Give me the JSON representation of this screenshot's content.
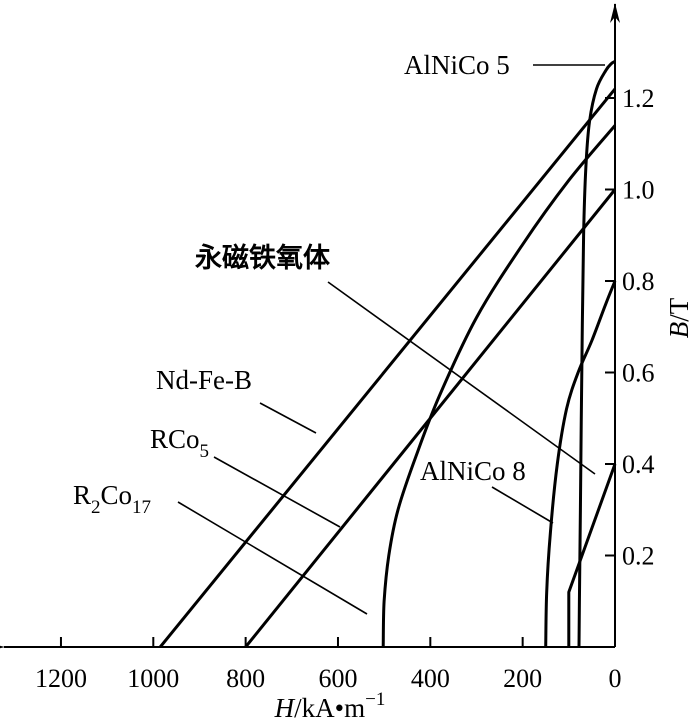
{
  "chart_data": {
    "type": "line",
    "title": "",
    "xlabel": "H/kA•m⁻¹",
    "ylabel": "B/T",
    "x_axis": {
      "reversed": true,
      "lim": [
        0,
        1300
      ],
      "ticks": [
        1200,
        1000,
        800,
        600,
        400,
        200,
        0
      ],
      "tick_labels": [
        "1200",
        "1000",
        "800",
        "600",
        "400",
        "200",
        "0"
      ],
      "label_title": "H",
      "label_unit": "/kA•m",
      "label_exp": "−1"
    },
    "y_axis": {
      "lim": [
        0,
        1.32
      ],
      "ticks": [
        0.2,
        0.4,
        0.6,
        0.8,
        1.0,
        1.2
      ],
      "tick_labels": [
        "0.2",
        "0.4",
        "0.6",
        "0.8",
        "1.0",
        "1.2"
      ],
      "label_title": "B",
      "label_unit": "/T"
    },
    "grid": false,
    "legend": "none",
    "series": [
      {
        "name": "AlNiCo 5",
        "points": [
          [
            0,
            1.28
          ],
          [
            8,
            1.275
          ],
          [
            20,
            1.26
          ],
          [
            40,
            1.22
          ],
          [
            55,
            1.15
          ],
          [
            63,
            1.05
          ],
          [
            68,
            0.9
          ],
          [
            72,
            0.6
          ],
          [
            75,
            0.3
          ],
          [
            77,
            0.1
          ],
          [
            78,
            0
          ]
        ]
      },
      {
        "name": "Nd-Fe-B",
        "points": [
          [
            0,
            1.22
          ],
          [
            985,
            0
          ]
        ]
      },
      {
        "name": "RCo5",
        "points": [
          [
            0,
            1.0
          ],
          [
            800,
            0
          ]
        ]
      },
      {
        "name": "R2Co17",
        "points": [
          [
            0,
            1.14
          ],
          [
            100,
            1.02
          ],
          [
            200,
            0.88
          ],
          [
            300,
            0.72
          ],
          [
            380,
            0.55
          ],
          [
            430,
            0.42
          ],
          [
            470,
            0.3
          ],
          [
            490,
            0.2
          ],
          [
            500,
            0.1
          ],
          [
            502,
            0
          ]
        ]
      },
      {
        "name": "AlNiCo 8",
        "points": [
          [
            0,
            0.8
          ],
          [
            20,
            0.75
          ],
          [
            50,
            0.67
          ],
          [
            80,
            0.6
          ],
          [
            105,
            0.52
          ],
          [
            125,
            0.4
          ],
          [
            140,
            0.25
          ],
          [
            148,
            0.12
          ],
          [
            150,
            0
          ]
        ]
      },
      {
        "name": "永磁铁氧体",
        "points": [
          [
            0,
            0.4
          ],
          [
            100,
            0.12
          ],
          [
            100,
            0
          ]
        ]
      }
    ],
    "annotations": [
      {
        "text": "AlNiCo 5",
        "style": "latin"
      },
      {
        "text": "永磁铁氧体",
        "style": "cjk"
      },
      {
        "text": "Nd-Fe-B",
        "style": "latin"
      },
      {
        "text": "RCo",
        "sub": "5",
        "style": "latin"
      },
      {
        "text": "R",
        "sub": "2",
        "text2": "Co",
        "sub2": "17",
        "style": "latin"
      },
      {
        "text": "AlNiCo 8",
        "style": "latin"
      }
    ]
  }
}
